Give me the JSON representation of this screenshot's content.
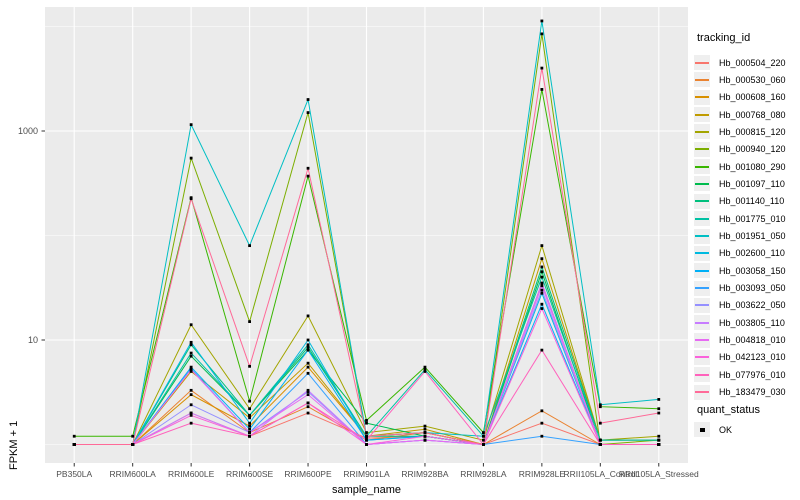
{
  "chart_data": {
    "type": "line",
    "xlabel": "sample_name",
    "ylabel": "FPKM + 1",
    "y_scale": "log10",
    "grid": true,
    "panel_bg": "#EBEBEB",
    "grid_color": "#FFFFFF",
    "point_color": "#000000",
    "point_shape": "square",
    "y_major_ticks": [
      {
        "label": "1000",
        "value": 1000
      },
      {
        "label": "10",
        "value": 10
      }
    ],
    "y_minor_values": [
      1,
      100,
      10000
    ],
    "categories": [
      "PB350LA",
      "RRIM600LA",
      "RRIM600LE",
      "RRIM600SE",
      "RRIM600PE",
      "RRIM901LA",
      "RRIM928BA",
      "RRIM928LA",
      "RRIM928LE",
      "RRII105LA_Control",
      "RRII105LA_Stressed"
    ],
    "legend": {
      "series_title": "tracking_id",
      "status_title": "quant_status",
      "status_items": [
        {
          "label": "OK",
          "marker": "black-square"
        }
      ]
    },
    "series": [
      {
        "name": "Hb_000504_220",
        "color": "#F8766D",
        "values": [
          1.0,
          1.0,
          2.0,
          1.2,
          2.0,
          1.15,
          1.2,
          1.0,
          1.6,
          1.0,
          1.0
        ]
      },
      {
        "name": "Hb_000530_060",
        "color": "#EA8331",
        "values": [
          1.0,
          1.0,
          3.3,
          1.3,
          2.3,
          1.1,
          1.3,
          1.0,
          2.1,
          1.0,
          1.0
        ]
      },
      {
        "name": "Hb_000608_160",
        "color": "#D89000",
        "values": [
          1.0,
          1.0,
          3.0,
          1.5,
          5.5,
          1.2,
          1.3,
          1.0,
          35,
          1.0,
          1.0
        ]
      },
      {
        "name": "Hb_000768_080",
        "color": "#C09B00",
        "values": [
          1.0,
          1.0,
          5.0,
          1.8,
          6.0,
          1.2,
          1.4,
          1.0,
          60,
          1.1,
          1.1
        ]
      },
      {
        "name": "Hb_000815_120",
        "color": "#A3A500",
        "values": [
          1.0,
          1.0,
          14,
          2.2,
          17,
          1.3,
          1.5,
          1.1,
          80,
          1.1,
          1.2
        ]
      },
      {
        "name": "Hb_000940_120",
        "color": "#7CAE00",
        "values": [
          1.0,
          1.0,
          550,
          15,
          1500,
          1.2,
          1.3,
          1.0,
          8500,
          1.0,
          1.1
        ]
      },
      {
        "name": "Hb_001080_290",
        "color": "#39B600",
        "values": [
          1.2,
          1.2,
          230,
          2.6,
          370,
          1.7,
          5.5,
          1.3,
          2500,
          2.3,
          2.2
        ]
      },
      {
        "name": "Hb_001097_110",
        "color": "#00BB4E",
        "values": [
          1.0,
          1.0,
          7.0,
          1.9,
          8.0,
          1.6,
          1.2,
          1.0,
          45,
          1.0,
          1.0
        ]
      },
      {
        "name": "Hb_001140_110",
        "color": "#00BF7D",
        "values": [
          1.0,
          1.0,
          9.0,
          1.9,
          8.5,
          1.2,
          1.2,
          1.0,
          50,
          1.1,
          1.1
        ]
      },
      {
        "name": "Hb_001775_010",
        "color": "#00C1A3",
        "values": [
          1.0,
          1.0,
          7.5,
          1.9,
          9.0,
          1.2,
          5.2,
          1.2,
          40,
          1.1,
          1.1
        ]
      },
      {
        "name": "Hb_001951_050",
        "color": "#00BFC4",
        "values": [
          1.0,
          1.0,
          1150,
          80,
          2000,
          1.2,
          1.3,
          1.2,
          11300,
          2.4,
          2.7
        ]
      },
      {
        "name": "Hb_002600_110",
        "color": "#00BAE0",
        "values": [
          1.0,
          1.0,
          9.5,
          1.6,
          10,
          1.1,
          1.2,
          1.0,
          28,
          1.0,
          1.0
        ]
      },
      {
        "name": "Hb_003058_150",
        "color": "#00B0F6",
        "values": [
          1.0,
          1.0,
          5.5,
          1.4,
          8.0,
          1.1,
          1.2,
          1.0,
          22,
          1.0,
          1.0
        ]
      },
      {
        "name": "Hb_003093_050",
        "color": "#35A2FF",
        "values": [
          1.0,
          1.0,
          5.3,
          1.3,
          4.8,
          1.0,
          1.1,
          1.0,
          1.2,
          1.0,
          1.0
        ]
      },
      {
        "name": "Hb_003622_050",
        "color": "#9590FF",
        "values": [
          1.0,
          1.0,
          2.4,
          1.3,
          3.2,
          1.0,
          1.1,
          1.0,
          30,
          1.0,
          1.0
        ]
      },
      {
        "name": "Hb_003805_110",
        "color": "#C77CFF",
        "values": [
          1.0,
          1.0,
          2.0,
          1.2,
          3.3,
          1.0,
          1.1,
          1.0,
          35,
          1.0,
          1.0
        ]
      },
      {
        "name": "Hb_004818_010",
        "color": "#E76BF3",
        "values": [
          1.0,
          1.0,
          5.2,
          1.3,
          3.0,
          1.0,
          1.1,
          1.0,
          33,
          1.0,
          1.0
        ]
      },
      {
        "name": "Hb_042123_010",
        "color": "#FA62DB",
        "values": [
          1.0,
          1.0,
          1.9,
          1.2,
          2.5,
          1.0,
          1.2,
          1.0,
          20,
          1.0,
          1.0
        ]
      },
      {
        "name": "Hb_077976_010",
        "color": "#FF62BC",
        "values": [
          1.0,
          1.0,
          1.6,
          1.2,
          2.5,
          1.1,
          5.0,
          1.0,
          8.0,
          1.0,
          1.0
        ]
      },
      {
        "name": "Hb_183479_030",
        "color": "#FF6A98",
        "values": [
          1.0,
          1.0,
          225,
          5.6,
          440,
          1.2,
          1.3,
          1.0,
          4000,
          1.6,
          2.0
        ]
      }
    ]
  }
}
